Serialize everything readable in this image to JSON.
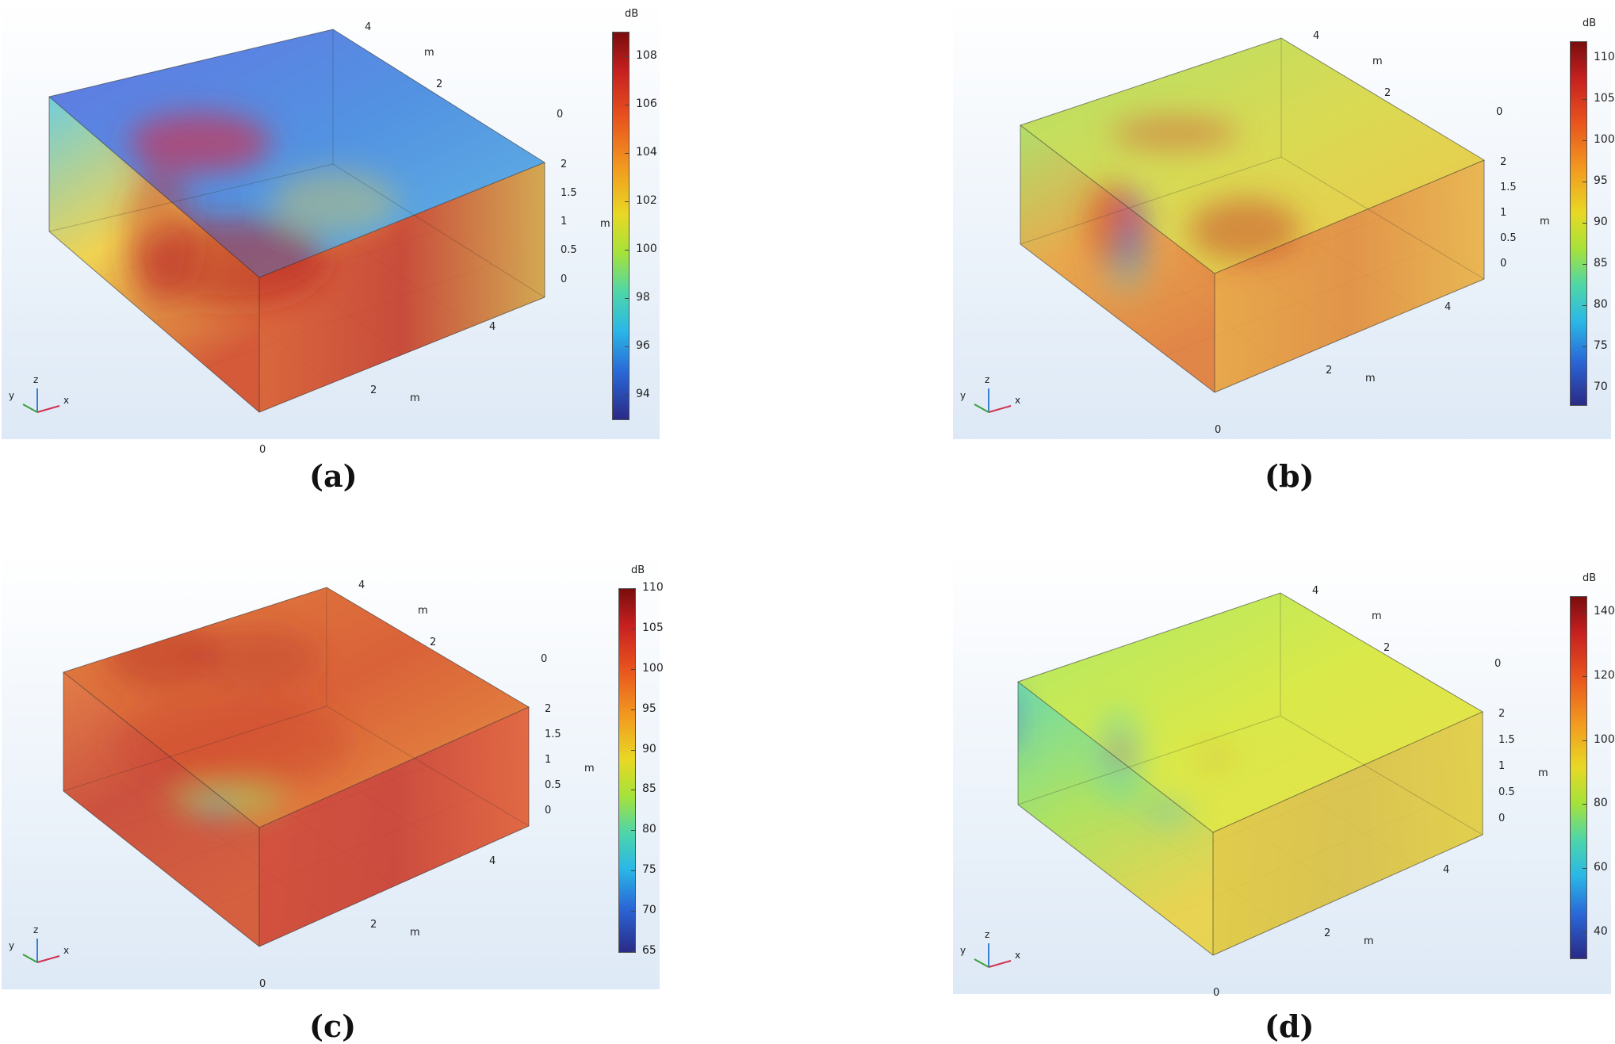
{
  "panels": [
    {
      "caption": "(a)",
      "unit": "dB",
      "ticks": [
        "108",
        "106",
        "104",
        "102",
        "100",
        "98",
        "96",
        "94"
      ],
      "colormap_min": 93,
      "colormap_max": 109,
      "axes": {
        "y_ticks": [
          "4",
          "2",
          "0"
        ],
        "y_unit": "m",
        "z_ticks": [
          "2",
          "1.5",
          "1",
          "0.5",
          "0"
        ],
        "z_unit": "m",
        "x_ticks": [
          "0",
          "2",
          "4"
        ],
        "x_unit": "m"
      },
      "triad": {
        "y": "y",
        "z": "z",
        "x": "x"
      }
    },
    {
      "caption": "(b)",
      "unit": "dB",
      "ticks": [
        "110",
        "105",
        "100",
        "95",
        "90",
        "85",
        "80",
        "75",
        "70"
      ],
      "colormap_min": 68,
      "colormap_max": 112,
      "axes": {
        "y_ticks": [
          "4",
          "2",
          "0"
        ],
        "y_unit": "m",
        "z_ticks": [
          "2",
          "1.5",
          "1",
          "0.5",
          "0"
        ],
        "z_unit": "m",
        "x_ticks": [
          "0",
          "2",
          "4"
        ],
        "x_unit": "m"
      },
      "triad": {
        "y": "y",
        "z": "z",
        "x": "x"
      }
    },
    {
      "caption": "(c)",
      "unit": "dB",
      "ticks": [
        "110",
        "105",
        "100",
        "95",
        "90",
        "85",
        "80",
        "75",
        "70",
        "65"
      ],
      "colormap_min": 65,
      "colormap_max": 110,
      "axes": {
        "y_ticks": [
          "4",
          "2",
          "0"
        ],
        "y_unit": "m",
        "z_ticks": [
          "2",
          "1.5",
          "1",
          "0.5",
          "0"
        ],
        "z_unit": "m",
        "x_ticks": [
          "0",
          "2",
          "4"
        ],
        "x_unit": "m"
      },
      "triad": {
        "y": "y",
        "z": "z",
        "x": "x"
      }
    },
    {
      "caption": "(d)",
      "unit": "dB",
      "ticks": [
        "140",
        "120",
        "100",
        "80",
        "60",
        "40"
      ],
      "colormap_min": 32,
      "colormap_max": 145,
      "axes": {
        "y_ticks": [
          "4",
          "2",
          "0"
        ],
        "y_unit": "m",
        "z_ticks": [
          "2",
          "1.5",
          "1",
          "0.5",
          "0"
        ],
        "z_unit": "m",
        "x_ticks": [
          "0",
          "2",
          "4"
        ],
        "x_unit": "m"
      },
      "triad": {
        "y": "y",
        "z": "z",
        "x": "x"
      }
    }
  ]
}
